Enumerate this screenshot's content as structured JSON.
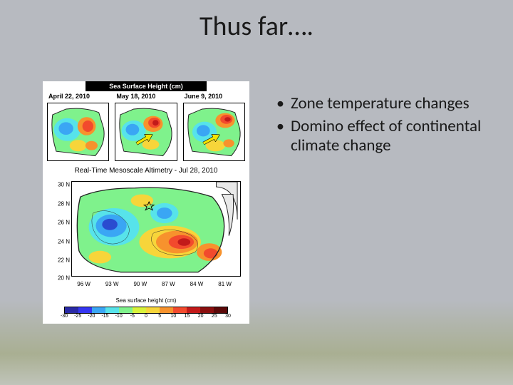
{
  "title": "Thus far….",
  "bullets": [
    "Zone temperature changes",
    "Domino effect of continental climate change"
  ],
  "figure": {
    "header": "Sea Surface Height (cm)",
    "top_row": {
      "dates": [
        "April 22, 2010",
        "May 18, 2010",
        "June 9, 2010"
      ],
      "arrow_color": "#f2e500",
      "arrow_stroke": "#000000"
    },
    "big": {
      "title": "Real-Time Mesoscale Altimetry - Jul 28, 2010",
      "xlabel": "Sea surface height (cm)",
      "y_ticks": [
        "30 N",
        "28 N",
        "26 N",
        "24 N",
        "22 N",
        "20 N"
      ],
      "x_ticks": [
        "96 W",
        "93 W",
        "90 W",
        "87 W",
        "84 W",
        "81 W"
      ],
      "x_extent": [
        -98,
        -79
      ],
      "y_extent": [
        18,
        31
      ]
    },
    "colorbar": {
      "colors": [
        "#2a2aa6",
        "#3536f1",
        "#3aa6f4",
        "#57e3ea",
        "#7ff28c",
        "#d8f23a",
        "#f7d53a",
        "#f7922d",
        "#f24a2d",
        "#c21a1a",
        "#8a0f0f",
        "#5a0808"
      ],
      "tick_labels": [
        "-30",
        "-25",
        "-20",
        "-15",
        "-10",
        "-5",
        "0",
        "5",
        "10",
        "15",
        "20",
        "25",
        "30"
      ]
    },
    "blob_palette": {
      "deep_blue": "#2a4cd0",
      "blue": "#3aa6f4",
      "cyan": "#57e3ea",
      "green": "#7ff28c",
      "yellow": "#f7d53a",
      "orange": "#f7922d",
      "red": "#f24a2d",
      "dark_red": "#c21a1a",
      "land": "#e9e9e9",
      "contour": "#222222",
      "star": "#000000"
    }
  }
}
